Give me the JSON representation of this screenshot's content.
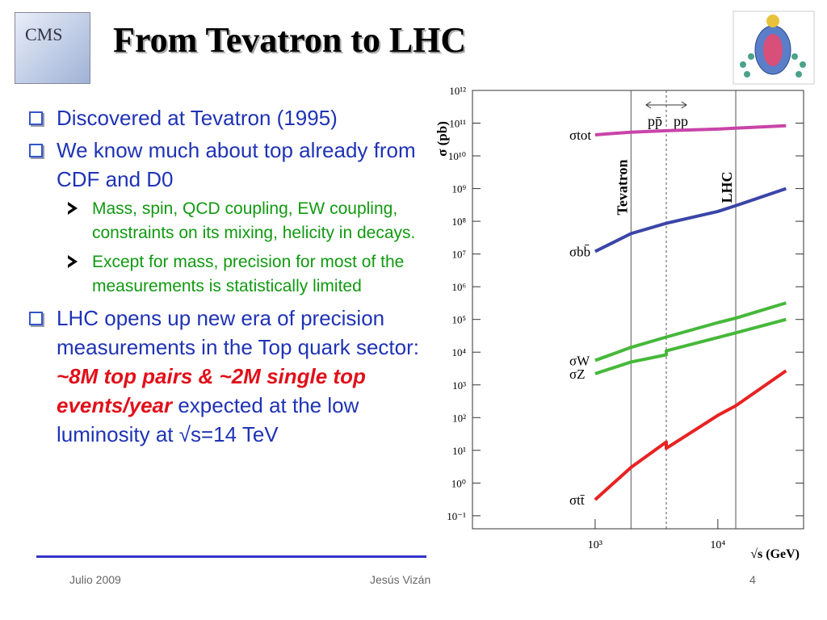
{
  "header": {
    "title": "From Tevatron to LHC",
    "logo_left": "CMS"
  },
  "bullets": [
    {
      "level": 1,
      "runs": [
        {
          "text": "Discovered at Tevatron (1995)"
        }
      ]
    },
    {
      "level": 1,
      "runs": [
        {
          "text": "We know much about top already from CDF and D0"
        }
      ]
    },
    {
      "level": 2,
      "runs": [
        {
          "text": "Mass, spin, QCD coupling, EW coupling, constraints on its mixing, helicity in decays."
        }
      ]
    },
    {
      "level": 2,
      "runs": [
        {
          "text": "Except for mass, precision for most of the measurements is statistically limited"
        }
      ]
    },
    {
      "level": 1,
      "runs": [
        {
          "text": "LHC opens up new era of precision measurements in the Top quark sector: "
        },
        {
          "text": "~8M top pairs & ~2M single top events/year",
          "emphasis": true
        },
        {
          "text": " expected at the low luminosity at √s=14 TeV"
        }
      ]
    }
  ],
  "chart_data": {
    "type": "line",
    "xlabel": "√s (GeV)",
    "ylabel": "σ (pb)",
    "xscale": "log",
    "yscale": "log",
    "xlim": [
      100,
      50000
    ],
    "ylim": [
      0.04,
      1000000000000
    ],
    "xticks": [
      {
        "value": 1000,
        "label": "10³"
      },
      {
        "value": 10000,
        "label": "10⁴"
      }
    ],
    "yticks": [
      {
        "value": 1000000000000,
        "label": "10¹²"
      },
      {
        "value": 100000000000,
        "label": "10¹¹"
      },
      {
        "value": 10000000000,
        "label": "10¹⁰"
      },
      {
        "value": 1000000000,
        "label": "10⁹"
      },
      {
        "value": 100000000,
        "label": "10⁸"
      },
      {
        "value": 10000000,
        "label": "10⁷"
      },
      {
        "value": 1000000,
        "label": "10⁶"
      },
      {
        "value": 100000,
        "label": "10⁵"
      },
      {
        "value": 10000,
        "label": "10⁴"
      },
      {
        "value": 1000,
        "label": "10³"
      },
      {
        "value": 100,
        "label": "10²"
      },
      {
        "value": 10,
        "label": "10¹"
      },
      {
        "value": 1,
        "label": "10⁰"
      },
      {
        "value": 0.1,
        "label": "10⁻¹"
      }
    ],
    "x": [
      1000,
      1960,
      3800,
      3800,
      10000,
      14000,
      36000
    ],
    "series": [
      {
        "name": "σtot",
        "color": "#c944a8",
        "values": [
          44000000000,
          53000000000,
          59000000000,
          59000000000,
          66000000000,
          70000000000,
          83000000000
        ]
      },
      {
        "name": "σbb̄",
        "color": "#3a45a8",
        "values": [
          12000000,
          42000000,
          87000000,
          87000000,
          200000000,
          300000000,
          1000000000
        ]
      },
      {
        "name": "σW",
        "color": "#46b83a",
        "values": [
          5600,
          14000,
          29000,
          29000,
          80000,
          110000,
          320000
        ]
      },
      {
        "name": "σZ",
        "color": "#46b83a",
        "values": [
          2200,
          5000,
          8300,
          11000,
          28000,
          39000,
          100000
        ]
      },
      {
        "name": "σtt̄",
        "color": "#e82222",
        "values": [
          0.31,
          3,
          18,
          11.5,
          117,
          230,
          2700
        ]
      }
    ],
    "markers": [
      {
        "x": 1960,
        "label": "Tevatron"
      },
      {
        "x": 14000,
        "label": "LHC"
      },
      {
        "x": 3800,
        "style": "dotted",
        "labels": [
          "pp̄",
          "pp"
        ]
      }
    ]
  },
  "footer": {
    "left": "Julio 2009",
    "center": "Jesús Vizán",
    "right": "4"
  }
}
